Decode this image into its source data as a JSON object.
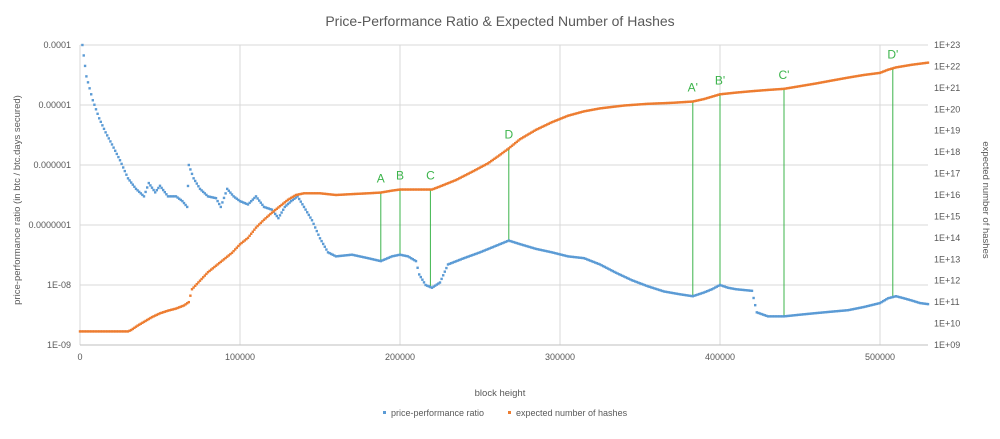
{
  "chart_data": {
    "type": "scatter",
    "title": "Price-Performance Ratio & Expected Number of Hashes",
    "xlabel": "block height",
    "ylabel_left": "price-performance ratio (in btc / btc.days secured)",
    "ylabel_right": "expected number of hashes",
    "xlim": [
      0,
      530000
    ],
    "x_ticks": [
      0,
      100000,
      200000,
      300000,
      400000,
      500000
    ],
    "x_tick_labels": [
      "0",
      "100000",
      "200000",
      "300000",
      "400000",
      "500000"
    ],
    "y_left_scale": "log",
    "y_left_lim": [
      1e-09,
      0.0001
    ],
    "y_left_tick_labels": [
      "0.0001",
      "0.00001",
      "0.000001",
      "0.0000001",
      "1E-08",
      "1E-09"
    ],
    "y_right_scale": "log",
    "y_right_lim": [
      1000000000.0,
      1e+23
    ],
    "y_right_tick_labels": [
      "1E+23",
      "1E+22",
      "1E+21",
      "1E+20",
      "1E+19",
      "1E+18",
      "1E+17",
      "1E+16",
      "1E+15",
      "1E+14",
      "1E+13",
      "1E+12",
      "1E+11",
      "1E+10",
      "1E+09"
    ],
    "grid": true,
    "legend_position": "bottom",
    "colors": {
      "ppr": "#5b9bd5",
      "hashes": "#ed7d31",
      "markers": "#3cb44b",
      "grid": "#d9d9d9"
    },
    "series": [
      {
        "name": "price-performance ratio",
        "axis": "left",
        "points": [
          [
            1500,
            0.0001
          ],
          [
            4000,
            3e-05
          ],
          [
            8000,
            1.2e-05
          ],
          [
            12000,
            6e-06
          ],
          [
            16000,
            3.5e-06
          ],
          [
            20000,
            2.2e-06
          ],
          [
            25000,
            1.2e-06
          ],
          [
            30000,
            6e-07
          ],
          [
            35000,
            4e-07
          ],
          [
            40000,
            3e-07
          ],
          [
            43000,
            5e-07
          ],
          [
            47000,
            3.5e-07
          ],
          [
            50000,
            4.5e-07
          ],
          [
            55000,
            3e-07
          ],
          [
            60000,
            3e-07
          ],
          [
            64000,
            2.5e-07
          ],
          [
            67000,
            2e-07
          ],
          [
            68000,
            1e-06
          ],
          [
            71000,
            6e-07
          ],
          [
            75000,
            4e-07
          ],
          [
            80000,
            3e-07
          ],
          [
            85000,
            2.8e-07
          ],
          [
            88000,
            2e-07
          ],
          [
            92000,
            4e-07
          ],
          [
            96000,
            3e-07
          ],
          [
            100000,
            2.5e-07
          ],
          [
            105000,
            2.2e-07
          ],
          [
            110000,
            3e-07
          ],
          [
            115000,
            2e-07
          ],
          [
            120000,
            1.8e-07
          ],
          [
            124000,
            1.3e-07
          ],
          [
            128000,
            2e-07
          ],
          [
            132000,
            2.5e-07
          ],
          [
            136000,
            3e-07
          ],
          [
            140000,
            2e-07
          ],
          [
            145000,
            1.2e-07
          ],
          [
            150000,
            6e-08
          ],
          [
            155000,
            3.5e-08
          ],
          [
            160000,
            3e-08
          ],
          [
            170000,
            3.2e-08
          ],
          [
            180000,
            2.8e-08
          ],
          [
            188000,
            2.5e-08
          ],
          [
            195000,
            3e-08
          ],
          [
            200000,
            3.2e-08
          ],
          [
            205000,
            3e-08
          ],
          [
            210000,
            2.5e-08
          ],
          [
            212000,
            1.5e-08
          ],
          [
            216000,
            1e-08
          ],
          [
            220000,
            9e-09
          ],
          [
            225000,
            1.1e-08
          ],
          [
            230000,
            2.2e-08
          ],
          [
            240000,
            2.8e-08
          ],
          [
            250000,
            3.5e-08
          ],
          [
            260000,
            4.5e-08
          ],
          [
            268000,
            5.5e-08
          ],
          [
            275000,
            4.8e-08
          ],
          [
            285000,
            4e-08
          ],
          [
            295000,
            3.5e-08
          ],
          [
            305000,
            3e-08
          ],
          [
            315000,
            2.8e-08
          ],
          [
            325000,
            2.2e-08
          ],
          [
            335000,
            1.6e-08
          ],
          [
            345000,
            1.2e-08
          ],
          [
            355000,
            9.5e-09
          ],
          [
            365000,
            7.8e-09
          ],
          [
            375000,
            7e-09
          ],
          [
            383000,
            6.5e-09
          ],
          [
            390000,
            7.5e-09
          ],
          [
            395000,
            8.5e-09
          ],
          [
            400000,
            1e-08
          ],
          [
            405000,
            9e-09
          ],
          [
            410000,
            8.5e-09
          ],
          [
            420000,
            8e-09
          ],
          [
            423000,
            3.5e-09
          ],
          [
            430000,
            3e-09
          ],
          [
            440000,
            3e-09
          ],
          [
            450000,
            3.2e-09
          ],
          [
            460000,
            3.4e-09
          ],
          [
            470000,
            3.6e-09
          ],
          [
            480000,
            3.8e-09
          ],
          [
            490000,
            4.3e-09
          ],
          [
            500000,
            5e-09
          ],
          [
            505000,
            6e-09
          ],
          [
            510000,
            6.5e-09
          ],
          [
            515000,
            6e-09
          ],
          [
            520000,
            5.5e-09
          ],
          [
            525000,
            5e-09
          ],
          [
            530000,
            4.8e-09
          ]
        ]
      },
      {
        "name": "expected number of hashes",
        "axis": "right",
        "points": [
          [
            0,
            4300000000.0
          ],
          [
            10000,
            4300000000.0
          ],
          [
            20000,
            4300000000.0
          ],
          [
            30000,
            4300000000.0
          ],
          [
            32000,
            5000000000.0
          ],
          [
            36000,
            8000000000.0
          ],
          [
            40000,
            12000000000.0
          ],
          [
            45000,
            20000000000.0
          ],
          [
            50000,
            30000000000.0
          ],
          [
            55000,
            40000000000.0
          ],
          [
            60000,
            50000000000.0
          ],
          [
            65000,
            70000000000.0
          ],
          [
            68000,
            100000000000.0
          ],
          [
            70000,
            400000000000.0
          ],
          [
            75000,
            1000000000000.0
          ],
          [
            80000,
            2500000000000.0
          ],
          [
            85000,
            5000000000000.0
          ],
          [
            90000,
            10000000000000.0
          ],
          [
            95000,
            20000000000000.0
          ],
          [
            100000,
            50000000000000.0
          ],
          [
            105000,
            100000000000000.0
          ],
          [
            110000,
            300000000000000.0
          ],
          [
            115000,
            700000000000000.0
          ],
          [
            120000,
            1500000000000000.0
          ],
          [
            125000,
            3000000000000000.0
          ],
          [
            130000,
            6000000000000000.0
          ],
          [
            135000,
            1e+16
          ],
          [
            140000,
            1.2e+16
          ],
          [
            150000,
            1.2e+16
          ],
          [
            160000,
            1e+16
          ],
          [
            170000,
            1.1e+16
          ],
          [
            180000,
            1.2e+16
          ],
          [
            188000,
            1.3e+16
          ],
          [
            195000,
            1.6e+16
          ],
          [
            200000,
            1.8e+16
          ],
          [
            210000,
            1.8e+16
          ],
          [
            220000,
            1.8e+16
          ],
          [
            225000,
            2.5e+16
          ],
          [
            235000,
            5e+16
          ],
          [
            245000,
            1.2e+17
          ],
          [
            255000,
            3e+17
          ],
          [
            262000,
            7e+17
          ],
          [
            268000,
            1.5e+18
          ],
          [
            275000,
            4e+18
          ],
          [
            285000,
            1.1e+19
          ],
          [
            295000,
            2.5e+19
          ],
          [
            305000,
            5e+19
          ],
          [
            315000,
            8e+19
          ],
          [
            325000,
            1.1e+20
          ],
          [
            340000,
            1.5e+20
          ],
          [
            355000,
            1.8e+20
          ],
          [
            370000,
            2e+20
          ],
          [
            383000,
            2.3e+20
          ],
          [
            390000,
            3e+20
          ],
          [
            400000,
            5e+20
          ],
          [
            410000,
            6e+20
          ],
          [
            420000,
            7e+20
          ],
          [
            430000,
            8e+20
          ],
          [
            440000,
            9e+20
          ],
          [
            450000,
            1.2e+21
          ],
          [
            460000,
            1.6e+21
          ],
          [
            470000,
            2.2e+21
          ],
          [
            480000,
            3e+21
          ],
          [
            490000,
            4e+21
          ],
          [
            500000,
            5e+21
          ],
          [
            505000,
            7e+21
          ],
          [
            510000,
            9e+21
          ],
          [
            520000,
            1.2e+22
          ],
          [
            530000,
            1.5e+22
          ]
        ]
      }
    ],
    "markers": [
      {
        "label": "A",
        "x": 188000,
        "y_right": 1.3e+16,
        "y_left": 2.5e-08
      },
      {
        "label": "B",
        "x": 200000,
        "y_right": 1.8e+16,
        "y_left": 3.2e-08
      },
      {
        "label": "C",
        "x": 219000,
        "y_right": 1.8e+16,
        "y_left": 9e-09
      },
      {
        "label": "D",
        "x": 268000,
        "y_right": 1.5e+18,
        "y_left": 5.5e-08
      },
      {
        "label": "A'",
        "x": 383000,
        "y_right": 2.3e+20,
        "y_left": 6.5e-09
      },
      {
        "label": "B'",
        "x": 400000,
        "y_right": 5e+20,
        "y_left": 1e-08
      },
      {
        "label": "C'",
        "x": 440000,
        "y_right": 9e+20,
        "y_left": 3e-09
      },
      {
        "label": "D'",
        "x": 508000,
        "y_right": 8e+21,
        "y_left": 6.3e-09
      }
    ],
    "legend": [
      {
        "label": "price-performance ratio",
        "series": 0
      },
      {
        "label": "expected number of hashes",
        "series": 1
      }
    ]
  }
}
